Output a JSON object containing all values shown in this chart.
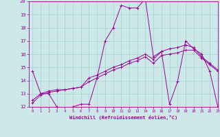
{
  "xlabel": "Windchill (Refroidissement éolien,°C)",
  "bg_color": "#cce8e8",
  "line_color": "#990099",
  "grid_color": "#aacfcf",
  "series1_y": [
    14.7,
    13.0,
    13.0,
    12.0,
    11.8,
    12.0,
    12.2,
    12.2,
    14.2,
    17.0,
    18.0,
    19.7,
    19.5,
    19.5,
    20.2,
    15.8,
    16.2,
    12.2,
    13.9,
    17.0,
    16.4,
    16.0,
    14.7,
    12.0
  ],
  "series2_y": [
    12.5,
    13.0,
    13.2,
    13.3,
    13.3,
    13.4,
    13.5,
    14.2,
    14.4,
    14.7,
    15.0,
    15.2,
    15.5,
    15.7,
    16.0,
    15.6,
    16.2,
    16.4,
    16.5,
    16.7,
    16.5,
    15.8,
    15.3,
    14.8
  ],
  "series3_y": [
    12.3,
    12.9,
    13.1,
    13.2,
    13.3,
    13.4,
    13.5,
    13.9,
    14.2,
    14.5,
    14.8,
    15.0,
    15.3,
    15.5,
    15.8,
    15.3,
    15.9,
    16.0,
    16.1,
    16.3,
    16.3,
    15.7,
    15.2,
    14.7
  ],
  "ylim": [
    12,
    20
  ],
  "xlim": [
    -0.5,
    23
  ],
  "yticks": [
    12,
    13,
    14,
    15,
    16,
    17,
    18,
    19,
    20
  ],
  "xticks": [
    0,
    1,
    2,
    3,
    4,
    5,
    6,
    7,
    8,
    9,
    10,
    11,
    12,
    13,
    14,
    15,
    16,
    17,
    18,
    19,
    20,
    21,
    22,
    23
  ]
}
